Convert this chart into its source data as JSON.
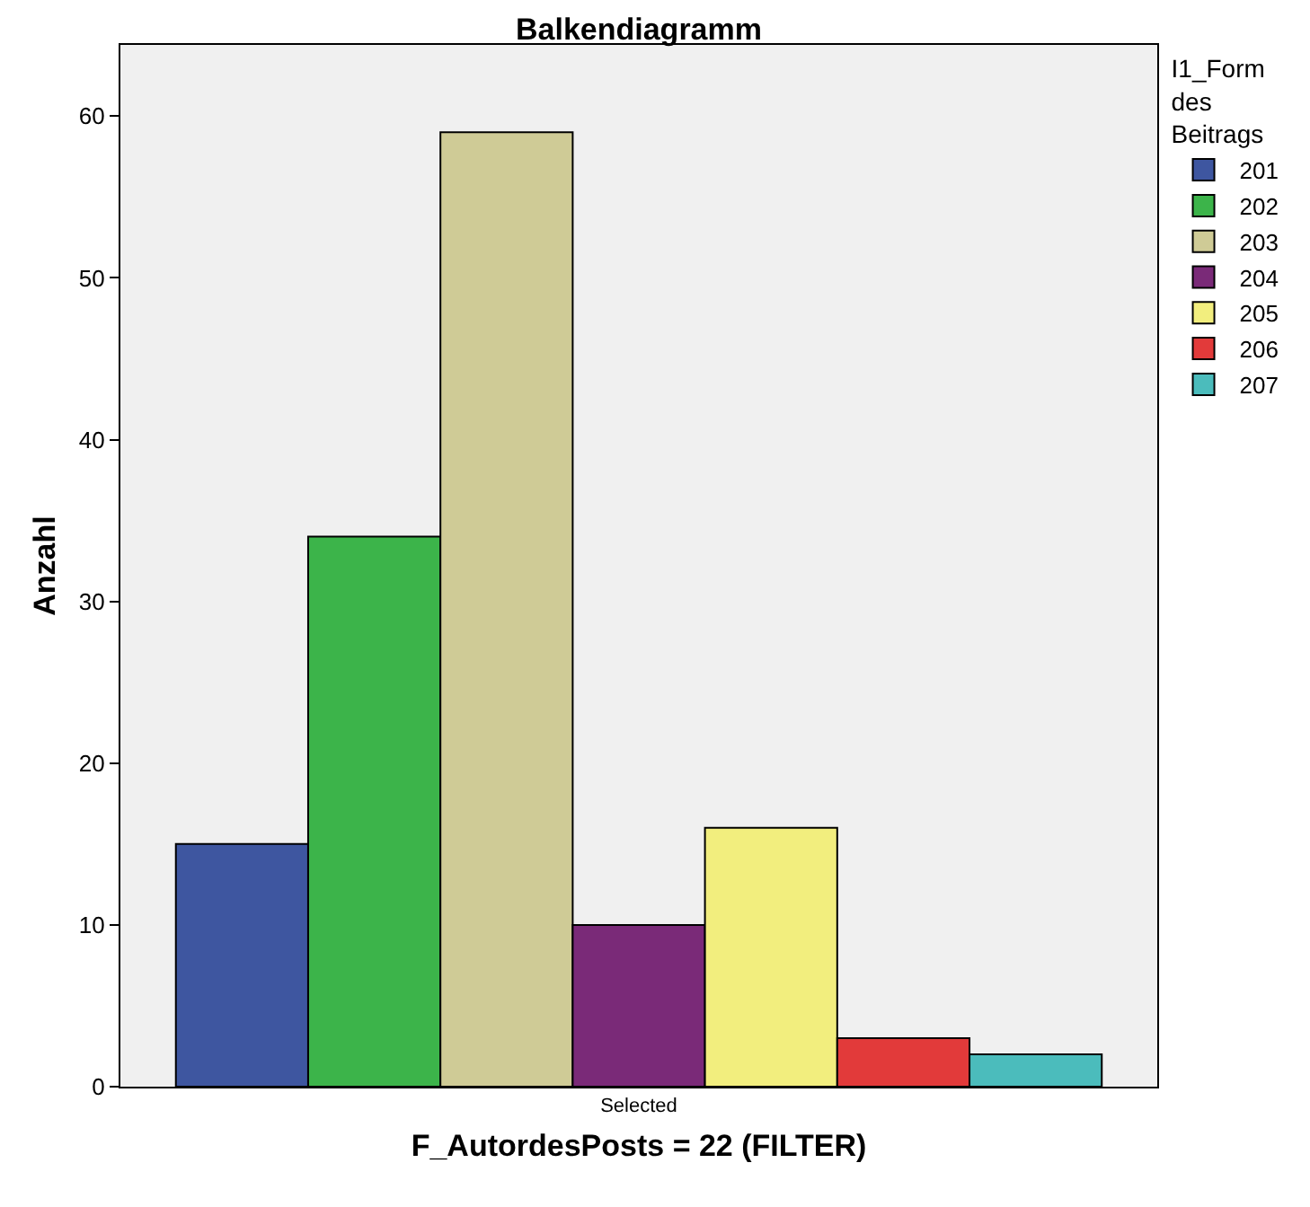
{
  "chart_data": {
    "type": "bar",
    "title": "Balkendiagramm",
    "xlabel": "F_AutordesPosts = 22 (FILTER)",
    "ylabel": "Anzahl",
    "legend_title": "I1_Form des Beitrags",
    "legend": "top right",
    "grid": false,
    "categories": [
      "Selected"
    ],
    "series": [
      {
        "name": "201",
        "color": "#3e56a0",
        "values": [
          15
        ]
      },
      {
        "name": "202",
        "color": "#3cb44a",
        "values": [
          34
        ]
      },
      {
        "name": "203",
        "color": "#cfcb96",
        "values": [
          59
        ]
      },
      {
        "name": "204",
        "color": "#7a2a78",
        "values": [
          10
        ]
      },
      {
        "name": "205",
        "color": "#f2ee7e",
        "values": [
          16
        ]
      },
      {
        "name": "206",
        "color": "#e23a3a",
        "values": [
          3
        ]
      },
      {
        "name": "207",
        "color": "#4bbcbc",
        "values": [
          2
        ]
      }
    ],
    "ylim": [
      0,
      64.4
    ],
    "yticks": [
      0,
      10,
      20,
      30,
      40,
      50,
      60
    ]
  }
}
